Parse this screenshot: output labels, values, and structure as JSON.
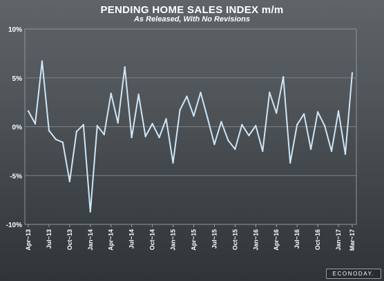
{
  "chart_data": {
    "type": "line",
    "title": "PENDING HOME SALES INDEX m/m",
    "subtitle": "As Released, With No Revisions",
    "xlabel": "",
    "ylabel": "",
    "ylim": [
      -10,
      10
    ],
    "yticks": [
      10,
      5,
      0,
      -5,
      -10
    ],
    "ytick_labels": [
      "10%",
      "5%",
      "0%",
      "-5%",
      "-10%"
    ],
    "x_tick_labels": [
      "Apr~13",
      "Jul~13",
      "Oct~13",
      "Jan~14",
      "Apr~14",
      "Jul~14",
      "Oct~14",
      "Jan~15",
      "Apr~15",
      "Jul~15",
      "Oct~15",
      "Jan~16",
      "Apr~16",
      "Jul~16",
      "Oct~16",
      "Jan~17",
      "Mar~17"
    ],
    "x_tick_indices": [
      0,
      3,
      6,
      9,
      12,
      15,
      18,
      21,
      24,
      27,
      30,
      33,
      36,
      39,
      42,
      45,
      47
    ],
    "x": [
      "Apr~13",
      "May~13",
      "Jun~13",
      "Jul~13",
      "Aug~13",
      "Sep~13",
      "Oct~13",
      "Nov~13",
      "Dec~13",
      "Jan~14",
      "Feb~14",
      "Mar~14",
      "Apr~14",
      "May~14",
      "Jun~14",
      "Jul~14",
      "Aug~14",
      "Sep~14",
      "Oct~14",
      "Nov~14",
      "Dec~14",
      "Jan~15",
      "Feb~15",
      "Mar~15",
      "Apr~15",
      "May~15",
      "Jun~15",
      "Jul~15",
      "Aug~15",
      "Sep~15",
      "Oct~15",
      "Nov~15",
      "Dec~15",
      "Jan~16",
      "Feb~16",
      "Mar~16",
      "Apr~16",
      "May~16",
      "Jun~16",
      "Jul~16",
      "Aug~16",
      "Sep~16",
      "Oct~16",
      "Nov~16",
      "Dec~16",
      "Jan~17",
      "Feb~17",
      "Mar~17"
    ],
    "series": [
      {
        "values": [
          1.6,
          0.3,
          6.7,
          -0.4,
          -1.3,
          -1.6,
          -5.6,
          -0.5,
          0.2,
          -8.7,
          0.1,
          -0.8,
          3.4,
          0.4,
          6.1,
          -1.1,
          3.3,
          -1.0,
          0.3,
          -1.1,
          0.8,
          -3.7,
          1.7,
          3.1,
          1.1,
          3.5,
          0.9,
          -1.8,
          0.5,
          -1.4,
          -2.3,
          0.2,
          -0.9,
          0.1,
          -2.5,
          3.5,
          1.4,
          5.1,
          -3.7,
          0.2,
          1.3,
          -2.3,
          1.5,
          0.1,
          -2.5,
          1.6,
          -2.8,
          5.5
        ],
        "color": "#cfe6f7"
      }
    ],
    "grid": true,
    "legend": "none"
  },
  "branding": {
    "badge": "ECONODAY."
  }
}
